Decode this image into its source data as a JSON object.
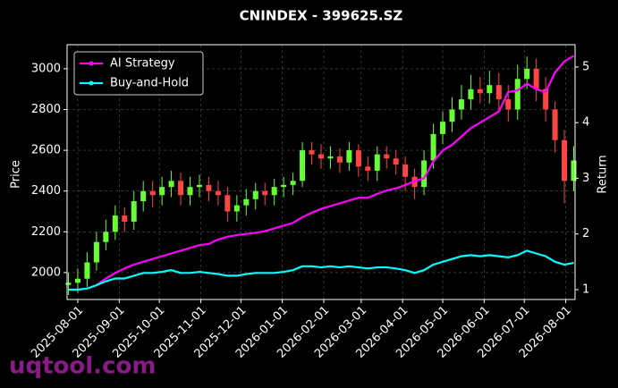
{
  "chart_data": {
    "type": "candlestick",
    "title": "CNINDEX - 399625.SZ",
    "y_label": "Price",
    "y2_label": "Return",
    "watermark": "uqtool.com",
    "x": [
      "2025-07-25",
      "2025-08-01",
      "2025-08-08",
      "2025-08-15",
      "2025-08-22",
      "2025-08-29",
      "2025-09-05",
      "2025-09-12",
      "2025-09-19",
      "2025-09-26",
      "2025-10-03",
      "2025-10-10",
      "2025-10-17",
      "2025-10-24",
      "2025-10-31",
      "2025-11-07",
      "2025-11-14",
      "2025-11-21",
      "2025-11-28",
      "2025-12-05",
      "2025-12-12",
      "2025-12-19",
      "2025-12-26",
      "2026-01-02",
      "2026-01-09",
      "2026-01-16",
      "2026-01-23",
      "2026-01-30",
      "2026-02-06",
      "2026-02-13",
      "2026-02-20",
      "2026-02-27",
      "2026-03-06",
      "2026-03-13",
      "2026-03-20",
      "2026-03-27",
      "2026-04-03",
      "2026-04-10",
      "2026-04-17",
      "2026-04-24",
      "2026-05-01",
      "2026-05-08",
      "2026-05-15",
      "2026-05-22",
      "2026-05-29",
      "2026-06-05",
      "2026-06-12",
      "2026-06-19",
      "2026-06-26",
      "2026-07-03",
      "2026-07-10",
      "2026-07-17",
      "2026-07-24",
      "2026-07-31",
      "2026-08-07"
    ],
    "open": [
      1940,
      1950,
      1970,
      2050,
      2150,
      2200,
      2280,
      2250,
      2350,
      2400,
      2380,
      2420,
      2450,
      2380,
      2420,
      2430,
      2400,
      2380,
      2300,
      2330,
      2360,
      2400,
      2380,
      2420,
      2430,
      2450,
      2600,
      2580,
      2560,
      2570,
      2540,
      2600,
      2520,
      2500,
      2580,
      2560,
      2530,
      2470,
      2420,
      2550,
      2680,
      2740,
      2800,
      2850,
      2900,
      2880,
      2920,
      2850,
      2800,
      2950,
      3000,
      2900,
      2800,
      2650,
      2450
    ],
    "high": [
      2000,
      2020,
      2100,
      2200,
      2260,
      2330,
      2320,
      2400,
      2450,
      2450,
      2470,
      2500,
      2490,
      2470,
      2480,
      2470,
      2450,
      2420,
      2380,
      2410,
      2440,
      2440,
      2460,
      2470,
      2490,
      2640,
      2640,
      2630,
      2620,
      2610,
      2640,
      2630,
      2570,
      2620,
      2620,
      2600,
      2570,
      2510,
      2600,
      2730,
      2790,
      2860,
      2920,
      2970,
      2960,
      2990,
      2980,
      2920,
      3020,
      3060,
      3050,
      2960,
      2840,
      2700,
      2620
    ],
    "low": [
      1890,
      1900,
      1930,
      2010,
      2110,
      2160,
      2200,
      2210,
      2300,
      2320,
      2330,
      2370,
      2330,
      2330,
      2370,
      2350,
      2330,
      2250,
      2250,
      2280,
      2310,
      2330,
      2330,
      2370,
      2380,
      2420,
      2530,
      2510,
      2510,
      2490,
      2500,
      2470,
      2450,
      2450,
      2510,
      2480,
      2400,
      2360,
      2380,
      2510,
      2630,
      2690,
      2750,
      2800,
      2830,
      2830,
      2790,
      2740,
      2750,
      2900,
      2840,
      2740,
      2590,
      2340,
      2400
    ],
    "close": [
      1950,
      1970,
      2050,
      2150,
      2200,
      2280,
      2250,
      2350,
      2400,
      2380,
      2420,
      2450,
      2380,
      2420,
      2430,
      2400,
      2380,
      2300,
      2330,
      2360,
      2400,
      2380,
      2420,
      2430,
      2450,
      2600,
      2580,
      2560,
      2570,
      2540,
      2600,
      2520,
      2500,
      2580,
      2560,
      2530,
      2470,
      2420,
      2550,
      2680,
      2740,
      2800,
      2850,
      2900,
      2880,
      2920,
      2850,
      2800,
      2950,
      3000,
      2900,
      2800,
      2650,
      2450,
      2550
    ],
    "up_color": "#66ff33",
    "down_color": "#ff4444",
    "series": [
      {
        "name": "AI Strategy",
        "color": "#ff00ff",
        "axis": "y2",
        "values": [
          1.0,
          1.0,
          1.02,
          1.08,
          1.2,
          1.3,
          1.38,
          1.45,
          1.5,
          1.55,
          1.6,
          1.65,
          1.7,
          1.75,
          1.8,
          1.82,
          1.9,
          1.95,
          1.98,
          2.0,
          2.02,
          2.05,
          2.1,
          2.15,
          2.2,
          2.3,
          2.38,
          2.45,
          2.5,
          2.55,
          2.6,
          2.65,
          2.65,
          2.72,
          2.78,
          2.82,
          2.88,
          2.95,
          3.0,
          3.3,
          3.5,
          3.6,
          3.75,
          3.9,
          4.0,
          4.1,
          4.2,
          4.55,
          4.58,
          4.7,
          4.6,
          4.55,
          4.9,
          5.1,
          5.2
        ]
      },
      {
        "name": "Buy-and-Hold",
        "color": "#00ffff",
        "axis": "y2",
        "values": [
          1.0,
          1.0,
          1.02,
          1.08,
          1.15,
          1.2,
          1.2,
          1.25,
          1.3,
          1.3,
          1.32,
          1.35,
          1.3,
          1.3,
          1.32,
          1.3,
          1.28,
          1.25,
          1.25,
          1.28,
          1.3,
          1.3,
          1.3,
          1.32,
          1.35,
          1.42,
          1.42,
          1.4,
          1.42,
          1.4,
          1.42,
          1.4,
          1.38,
          1.4,
          1.4,
          1.38,
          1.35,
          1.3,
          1.35,
          1.45,
          1.5,
          1.55,
          1.6,
          1.62,
          1.6,
          1.62,
          1.6,
          1.58,
          1.62,
          1.7,
          1.65,
          1.6,
          1.5,
          1.45,
          1.48
        ]
      }
    ],
    "xlim": [
      "2025-07-24",
      "2026-08-08"
    ],
    "xticks": [
      "2025-08-01",
      "2025-09-01",
      "2025-10-01",
      "2025-11-01",
      "2025-12-01",
      "2026-01-01",
      "2026-02-01",
      "2026-03-01",
      "2026-04-01",
      "2026-05-01",
      "2026-06-01",
      "2026-07-01",
      "2026-08-01"
    ],
    "ylim": [
      1868,
      3118
    ],
    "yticks": [
      2000,
      2200,
      2400,
      2600,
      2800,
      3000
    ],
    "y2lim": [
      0.823,
      5.4
    ],
    "y2ticks": [
      1,
      2,
      3,
      4,
      5
    ],
    "grid": true,
    "legend": "upper-left"
  }
}
